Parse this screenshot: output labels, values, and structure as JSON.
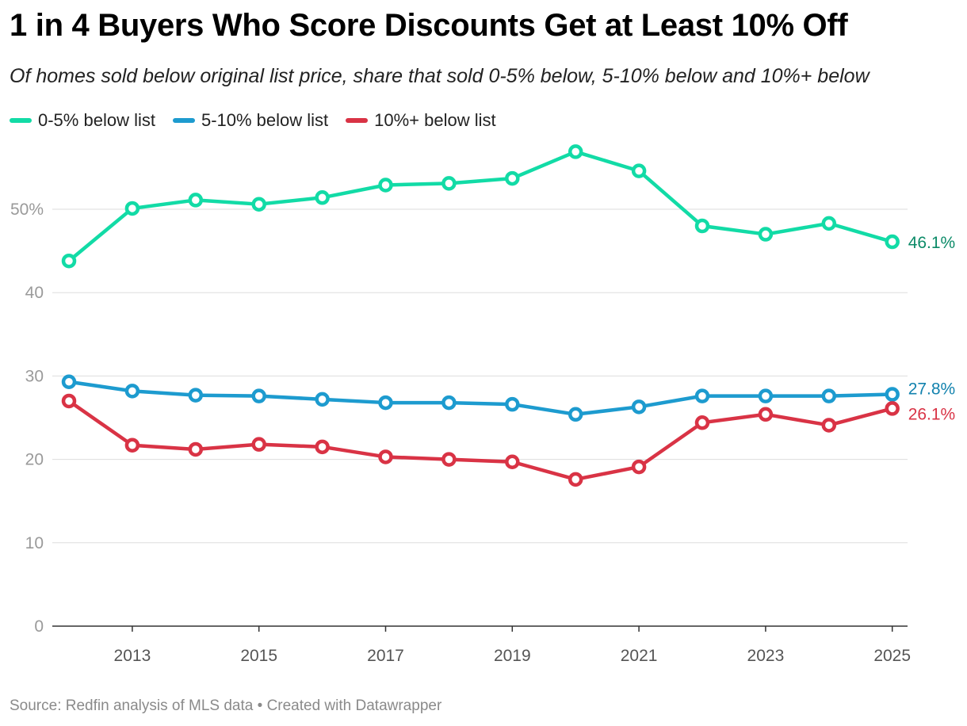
{
  "title": "1 in 4 Buyers Who Score Discounts Get at Least 10% Off",
  "subtitle": "Of homes sold below original list price, share that sold 0-5% below, 5-10% below and 10%+ below",
  "footer": {
    "source": "Source: Redfin analysis of MLS data",
    "separator": "•",
    "credit": "Created with Datawrapper"
  },
  "chart_data": {
    "type": "line",
    "x": [
      2012,
      2013,
      2014,
      2015,
      2016,
      2017,
      2018,
      2019,
      2020,
      2021,
      2022,
      2023,
      2024,
      2025
    ],
    "x_tick_labels": [
      "2013",
      "2015",
      "2017",
      "2019",
      "2021",
      "2023",
      "2025"
    ],
    "y_tick_labels": [
      "0",
      "10",
      "20",
      "30",
      "40",
      "50%"
    ],
    "y_ticks": [
      0,
      10,
      20,
      30,
      40,
      50
    ],
    "ylim": [
      0,
      57
    ],
    "grid": true,
    "legend_position": "top-left",
    "series": [
      {
        "name": "0-5% below list",
        "color": "#12dba6",
        "label_color": "#0b8a67",
        "end_label": "46.1%",
        "values": [
          43.8,
          50.1,
          51.1,
          50.6,
          51.4,
          52.9,
          53.1,
          53.7,
          56.9,
          54.6,
          48.0,
          47.0,
          48.3,
          46.1
        ]
      },
      {
        "name": "5-10% below list",
        "color": "#1d9bcf",
        "label_color": "#1282ae",
        "end_label": "27.8%",
        "values": [
          29.3,
          28.2,
          27.7,
          27.6,
          27.2,
          26.8,
          26.8,
          26.6,
          25.4,
          26.3,
          27.6,
          27.6,
          27.6,
          27.8
        ]
      },
      {
        "name": "10%+ below list",
        "color": "#d93345",
        "label_color": "#d93345",
        "end_label": "26.1%",
        "values": [
          27.0,
          21.7,
          21.2,
          21.8,
          21.5,
          20.3,
          20.0,
          19.7,
          17.6,
          19.1,
          24.4,
          25.4,
          24.1,
          26.1
        ]
      }
    ]
  }
}
